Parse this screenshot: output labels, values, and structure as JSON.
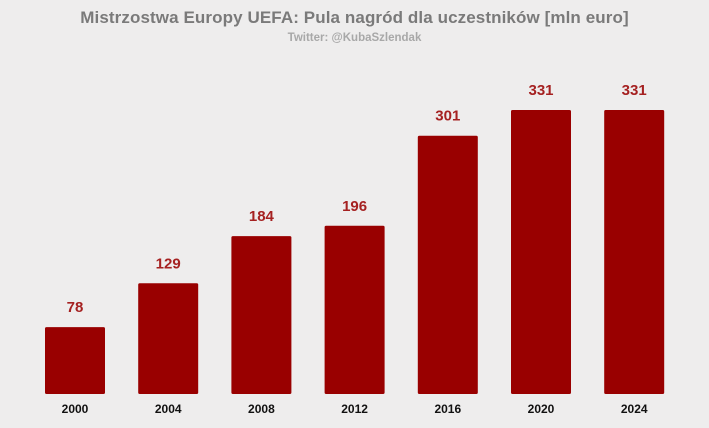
{
  "title": "Mistrzostwa Europy UEFA: Pula nagród dla uczestników [mln euro]",
  "subtitle": "Twitter: @KubaSzlendak",
  "colors": {
    "background": "#eeeded",
    "bar": "#990000",
    "value_label": "#a52121",
    "tick_label": "#111111"
  },
  "chart_data": {
    "type": "bar",
    "title": "Mistrzostwa Europy UEFA: Pula nagród dla uczestników [mln euro]",
    "subtitle": "Twitter: @KubaSzlendak",
    "categories": [
      "2000",
      "2004",
      "2008",
      "2012",
      "2016",
      "2020",
      "2024"
    ],
    "values": [
      78,
      129,
      184,
      196,
      301,
      331,
      331
    ],
    "xlabel": "",
    "ylabel": "",
    "ylim": [
      0,
      331
    ],
    "grid": false,
    "legend": "none",
    "data_labels": true
  }
}
